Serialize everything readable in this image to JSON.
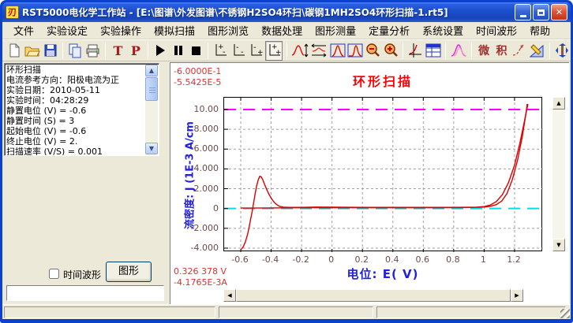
{
  "window": {
    "title": "RST5000电化学工作站  -  [E:\\图谱\\外发图谱\\不锈钢H2SO4环扫\\碳钢1MH2SO4环形扫描-1.rt5]",
    "logo_text": "刃",
    "controls": {
      "minimize": "minimize",
      "restore": "restore",
      "close": "close"
    }
  },
  "menu": {
    "items": [
      "文件",
      "实验设定",
      "实验操作",
      "模拟扫描",
      "图形浏览",
      "数据处理",
      "图形测量",
      "定量分析",
      "系统设置",
      "时间波形",
      "帮助"
    ]
  },
  "toolbar": {
    "t_label": "T",
    "p_label": "P",
    "derivative_label": "微",
    "integral_label": "积"
  },
  "sidebar": {
    "info_lines": [
      "环形扫描",
      "电流参考方向：阳极电流为正",
      "实验日期：2010-05-11",
      "实验时间：04:28:29",
      "静置电位 (V)  =  -0.6",
      "静置时间 (S)  =  3",
      "起始电位 (V)  =  -0.6",
      "终止电位 (V)  =  2.",
      "扫描速率 (V/S)  =  0.001"
    ],
    "time_wave_label": "时间波形",
    "graph_button_label": "图形",
    "input_value": ""
  },
  "chart": {
    "readout_top_voltage": "-6.0000E-1",
    "readout_top_current": "-5.5425E-5",
    "readout_bottom_voltage": "0.326 378 V",
    "readout_bottom_current": "-4.1765E-3A"
  },
  "chart_data": {
    "type": "line",
    "title": "环形扫描",
    "xlabel": "电位:  E( V)",
    "ylabel": "流密度:  J (1E-3 A/cm",
    "xlim": [
      -0.709,
      1.387
    ],
    "ylim": [
      -4.4,
      11.19
    ],
    "grid": "dashed-gray",
    "legend": "none",
    "xticks": {
      "values": [
        -0.6,
        -0.4,
        -0.2,
        0,
        0.2,
        0.4,
        0.6,
        0.8,
        1,
        1.2
      ],
      "labels": [
        "-0.6",
        "-0.4",
        "-0.2",
        "0",
        "0.2",
        "0.4",
        "0.6",
        "0.8",
        "1",
        "1.2"
      ]
    },
    "yticks": {
      "values": [
        10,
        8,
        6,
        4,
        2,
        0,
        -2,
        -4
      ],
      "labels": [
        "10.00",
        "8.000",
        "6.000",
        "4.000",
        "2.000",
        "0",
        "-2.000",
        "-4.000"
      ]
    },
    "ref_lines": [
      {
        "name": "upper-limit-line",
        "y": 10,
        "color": "#FF00FF"
      },
      {
        "name": "zero-current-line",
        "y": 0,
        "color": "#00DDE6"
      }
    ],
    "series": [
      {
        "name": "forward-scan",
        "color": "#DD0000",
        "points": [
          [
            -0.6,
            -4.18
          ],
          [
            -0.585,
            -3.9
          ],
          [
            -0.57,
            -3.4
          ],
          [
            -0.555,
            -2.6
          ],
          [
            -0.545,
            -1.9
          ],
          [
            -0.535,
            -1.1
          ],
          [
            -0.525,
            -0.3
          ],
          [
            -0.515,
            0.6
          ],
          [
            -0.505,
            1.5
          ],
          [
            -0.495,
            2.3
          ],
          [
            -0.485,
            2.9
          ],
          [
            -0.475,
            3.25
          ],
          [
            -0.465,
            3.2
          ],
          [
            -0.455,
            2.9
          ],
          [
            -0.445,
            2.5
          ],
          [
            -0.43,
            1.95
          ],
          [
            -0.415,
            1.45
          ],
          [
            -0.4,
            1.05
          ],
          [
            -0.385,
            0.72
          ],
          [
            -0.37,
            0.48
          ],
          [
            -0.355,
            0.3
          ],
          [
            -0.34,
            0.2
          ],
          [
            -0.32,
            0.14
          ],
          [
            -0.28,
            0.12
          ],
          [
            -0.2,
            0.12
          ],
          [
            -0.1,
            0.15
          ],
          [
            0.0,
            0.13
          ],
          [
            0.2,
            0.12
          ],
          [
            0.4,
            0.12
          ],
          [
            0.6,
            0.12
          ],
          [
            0.8,
            0.12
          ],
          [
            0.95,
            0.14
          ],
          [
            1.0,
            0.2
          ],
          [
            1.04,
            0.35
          ],
          [
            1.08,
            0.7
          ],
          [
            1.12,
            1.4
          ],
          [
            1.16,
            2.6
          ],
          [
            1.2,
            4.4
          ],
          [
            1.235,
            6.6
          ],
          [
            1.262,
            8.6
          ],
          [
            1.28,
            10.0
          ],
          [
            1.288,
            10.55
          ]
        ]
      },
      {
        "name": "reverse-scan",
        "color": "#DD0000",
        "points": [
          [
            1.283,
            10.55
          ],
          [
            1.272,
            9.3
          ],
          [
            1.25,
            7.2
          ],
          [
            1.22,
            4.9
          ],
          [
            1.185,
            2.9
          ],
          [
            1.15,
            1.5
          ],
          [
            1.115,
            0.75
          ],
          [
            1.08,
            0.4
          ],
          [
            1.04,
            0.22
          ],
          [
            1.0,
            0.15
          ],
          [
            0.9,
            0.1
          ],
          [
            0.7,
            0.08
          ],
          [
            0.4,
            0.08
          ],
          [
            0.1,
            0.08
          ],
          [
            -0.2,
            0.08
          ],
          [
            -0.4,
            0.06
          ],
          [
            -0.52,
            0.05
          ],
          [
            -0.6,
            0.05
          ]
        ]
      }
    ]
  },
  "status": {
    "panels": [
      "",
      "",
      ""
    ]
  }
}
